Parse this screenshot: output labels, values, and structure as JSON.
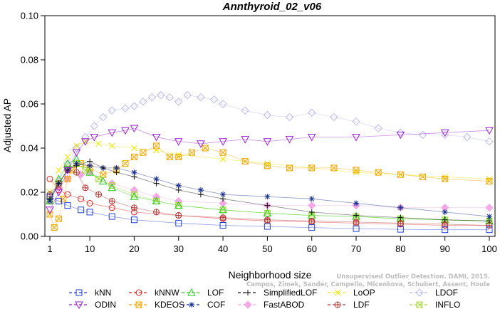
{
  "chart_data": {
    "type": "line",
    "title": "Annthyroid_02_v06",
    "xlabel": "Neighborhood size",
    "ylabel": "Adjusted AP",
    "xlim": [
      1,
      100
    ],
    "ylim": [
      0,
      0.1
    ],
    "x_ticks": [
      1,
      10,
      20,
      30,
      40,
      50,
      60,
      70,
      80,
      90,
      100
    ],
    "y_ticks": [
      "0.00",
      "0.02",
      "0.04",
      "0.06",
      "0.08",
      "0.10"
    ],
    "grid": false,
    "legend_position": "bottom",
    "watermark_lines": [
      "Unsupervised Outlier Detection. DAMI, 2015.",
      "Campos, Zimek, Sander, Campello, Micenkova, Schubert, Assent, Houle"
    ],
    "series": [
      {
        "name": "kNN",
        "color": "#1f3fd6",
        "marker": "square",
        "points": [
          [
            1,
            0.018
          ],
          [
            3,
            0.016
          ],
          [
            5,
            0.014
          ],
          [
            8,
            0.012
          ],
          [
            10,
            0.011
          ],
          [
            15,
            0.009
          ],
          [
            20,
            0.0075
          ],
          [
            30,
            0.006
          ],
          [
            40,
            0.005
          ],
          [
            50,
            0.0045
          ],
          [
            60,
            0.004
          ],
          [
            70,
            0.0035
          ],
          [
            80,
            0.0032
          ],
          [
            90,
            0.003
          ],
          [
            100,
            0.003
          ]
        ]
      },
      {
        "name": "kNNW",
        "color": "#e0201c",
        "marker": "circle",
        "points": [
          [
            1,
            0.026
          ],
          [
            3,
            0.021
          ],
          [
            5,
            0.019
          ],
          [
            8,
            0.017
          ],
          [
            10,
            0.015
          ],
          [
            15,
            0.013
          ],
          [
            20,
            0.011
          ],
          [
            30,
            0.0095
          ],
          [
            40,
            0.008
          ],
          [
            50,
            0.007
          ],
          [
            60,
            0.0065
          ],
          [
            70,
            0.006
          ],
          [
            80,
            0.0055
          ],
          [
            90,
            0.005
          ],
          [
            100,
            0.005
          ]
        ]
      },
      {
        "name": "LOF",
        "color": "#22cc1a",
        "marker": "triangle-up",
        "points": [
          [
            1,
            0.016
          ],
          [
            3,
            0.026
          ],
          [
            5,
            0.033
          ],
          [
            7,
            0.035
          ],
          [
            10,
            0.029
          ],
          [
            13,
            0.025
          ],
          [
            15,
            0.022
          ],
          [
            20,
            0.018
          ],
          [
            25,
            0.016
          ],
          [
            30,
            0.014
          ],
          [
            40,
            0.012
          ],
          [
            50,
            0.0105
          ],
          [
            60,
            0.0095
          ],
          [
            70,
            0.009
          ],
          [
            80,
            0.008
          ],
          [
            90,
            0.0075
          ],
          [
            100,
            0.007
          ]
        ]
      },
      {
        "name": "SimplifiedLOF",
        "color": "#111111",
        "marker": "plus",
        "points": [
          [
            1,
            0.017
          ],
          [
            3,
            0.024
          ],
          [
            5,
            0.03
          ],
          [
            7,
            0.032
          ],
          [
            10,
            0.034
          ],
          [
            13,
            0.031
          ],
          [
            16,
            0.029
          ],
          [
            20,
            0.027
          ],
          [
            25,
            0.024
          ],
          [
            30,
            0.021
          ],
          [
            35,
            0.019
          ],
          [
            40,
            0.017
          ],
          [
            50,
            0.014
          ],
          [
            60,
            0.011
          ],
          [
            70,
            0.0095
          ],
          [
            80,
            0.0085
          ],
          [
            90,
            0.0075
          ],
          [
            100,
            0.007
          ]
        ]
      },
      {
        "name": "LoOP",
        "color": "#f2e600",
        "marker": "x",
        "points": [
          [
            1,
            0.02
          ],
          [
            3,
            0.03
          ],
          [
            5,
            0.036
          ],
          [
            7,
            0.041
          ],
          [
            9,
            0.043
          ],
          [
            12,
            0.042
          ],
          [
            15,
            0.041
          ],
          [
            20,
            0.04
          ],
          [
            25,
            0.039
          ],
          [
            30,
            0.037
          ],
          [
            40,
            0.035
          ],
          [
            50,
            0.033
          ],
          [
            60,
            0.031
          ],
          [
            70,
            0.029
          ],
          [
            80,
            0.028
          ],
          [
            90,
            0.027
          ],
          [
            100,
            0.026
          ]
        ]
      },
      {
        "name": "LDOF",
        "color": "#b9b9ee",
        "marker": "diamond",
        "points": [
          [
            1,
            0.017
          ],
          [
            3,
            0.025
          ],
          [
            5,
            0.033
          ],
          [
            7,
            0.04
          ],
          [
            9,
            0.045
          ],
          [
            11,
            0.05
          ],
          [
            13,
            0.054
          ],
          [
            15,
            0.057
          ],
          [
            18,
            0.058
          ],
          [
            20,
            0.059
          ],
          [
            22,
            0.061
          ],
          [
            24,
            0.063
          ],
          [
            26,
            0.064
          ],
          [
            28,
            0.063
          ],
          [
            30,
            0.061
          ],
          [
            32,
            0.064
          ],
          [
            35,
            0.063
          ],
          [
            38,
            0.062
          ],
          [
            40,
            0.06
          ],
          [
            45,
            0.057
          ],
          [
            50,
            0.055
          ],
          [
            55,
            0.054
          ],
          [
            60,
            0.056
          ],
          [
            65,
            0.054
          ],
          [
            70,
            0.052
          ],
          [
            75,
            0.049
          ],
          [
            80,
            0.047
          ],
          [
            85,
            0.046
          ],
          [
            90,
            0.046
          ],
          [
            95,
            0.045
          ],
          [
            100,
            0.043
          ]
        ]
      },
      {
        "name": "ODIN",
        "color": "#9a1fd6",
        "marker": "triangle-down",
        "points": [
          [
            1,
            0.012
          ],
          [
            3,
            0.02
          ],
          [
            5,
            0.03
          ],
          [
            7,
            0.038
          ],
          [
            9,
            0.043
          ],
          [
            11,
            0.045
          ],
          [
            15,
            0.047
          ],
          [
            18,
            0.048
          ],
          [
            20,
            0.049
          ],
          [
            25,
            0.045
          ],
          [
            30,
            0.043
          ],
          [
            35,
            0.042
          ],
          [
            40,
            0.043
          ],
          [
            45,
            0.044
          ],
          [
            50,
            0.043
          ],
          [
            55,
            0.044
          ],
          [
            60,
            0.045
          ],
          [
            70,
            0.045
          ],
          [
            80,
            0.046
          ],
          [
            90,
            0.047
          ],
          [
            100,
            0.048
          ]
        ]
      },
      {
        "name": "KDEOS",
        "color": "#f2a700",
        "marker": "square-x",
        "points": [
          [
            1,
            0.01
          ],
          [
            2,
            0.004
          ],
          [
            3,
            0.008
          ],
          [
            4,
            0.017
          ],
          [
            5,
            0.026
          ],
          [
            6,
            0.03
          ],
          [
            8,
            0.033
          ],
          [
            10,
            0.031
          ],
          [
            13,
            0.028
          ],
          [
            16,
            0.03
          ],
          [
            18,
            0.033
          ],
          [
            20,
            0.036
          ],
          [
            22,
            0.038
          ],
          [
            25,
            0.041
          ],
          [
            28,
            0.036
          ],
          [
            30,
            0.036
          ],
          [
            33,
            0.038
          ],
          [
            36,
            0.04
          ],
          [
            40,
            0.038
          ],
          [
            45,
            0.034
          ],
          [
            50,
            0.032
          ],
          [
            55,
            0.031
          ],
          [
            60,
            0.031
          ],
          [
            65,
            0.031
          ],
          [
            70,
            0.03
          ],
          [
            75,
            0.029
          ],
          [
            80,
            0.028
          ],
          [
            85,
            0.027
          ],
          [
            90,
            0.026
          ],
          [
            100,
            0.025
          ]
        ]
      },
      {
        "name": "COF",
        "color": "#152e8e",
        "marker": "asterisk",
        "points": [
          [
            1,
            0.016
          ],
          [
            3,
            0.024
          ],
          [
            5,
            0.03
          ],
          [
            7,
            0.033
          ],
          [
            10,
            0.032
          ],
          [
            13,
            0.031
          ],
          [
            16,
            0.031
          ],
          [
            20,
            0.029
          ],
          [
            25,
            0.026
          ],
          [
            30,
            0.023
          ],
          [
            35,
            0.021
          ],
          [
            40,
            0.019
          ],
          [
            50,
            0.018
          ],
          [
            60,
            0.017
          ],
          [
            70,
            0.015
          ],
          [
            80,
            0.013
          ],
          [
            90,
            0.011
          ],
          [
            100,
            0.009
          ]
        ]
      },
      {
        "name": "FastABOD",
        "color": "#f2a9e6",
        "marker": "diamond-filled",
        "points": [
          [
            1,
            0.016
          ],
          [
            3,
            0.022
          ],
          [
            5,
            0.026
          ],
          [
            8,
            0.028
          ],
          [
            10,
            0.029
          ],
          [
            15,
            0.024
          ],
          [
            20,
            0.021
          ],
          [
            25,
            0.018
          ],
          [
            30,
            0.016
          ],
          [
            40,
            0.015
          ],
          [
            50,
            0.014
          ],
          [
            60,
            0.014
          ],
          [
            70,
            0.014
          ],
          [
            80,
            0.013
          ],
          [
            90,
            0.013
          ],
          [
            100,
            0.013
          ]
        ]
      },
      {
        "name": "LDF",
        "color": "#b03a3a",
        "marker": "circle-plus",
        "points": [
          [
            1,
            0.019
          ],
          [
            3,
            0.024
          ],
          [
            5,
            0.03
          ],
          [
            7,
            0.029
          ],
          [
            9,
            0.022
          ],
          [
            12,
            0.019
          ],
          [
            15,
            0.016
          ],
          [
            20,
            0.013
          ],
          [
            25,
            0.011
          ],
          [
            30,
            0.0095
          ],
          [
            40,
            0.0085
          ],
          [
            50,
            0.0075
          ],
          [
            60,
            0.007
          ],
          [
            70,
            0.0065
          ],
          [
            80,
            0.006
          ],
          [
            90,
            0.0055
          ],
          [
            100,
            0.005
          ]
        ]
      },
      {
        "name": "INFLO",
        "color": "#a8d93a",
        "marker": "square-x-light",
        "points": [
          [
            1,
            0.016
          ],
          [
            3,
            0.024
          ],
          [
            5,
            0.031
          ],
          [
            7,
            0.033
          ],
          [
            9,
            0.03
          ],
          [
            12,
            0.026
          ],
          [
            15,
            0.023
          ],
          [
            20,
            0.019
          ],
          [
            25,
            0.016
          ],
          [
            30,
            0.014
          ],
          [
            40,
            0.012
          ],
          [
            50,
            0.0105
          ],
          [
            60,
            0.0095
          ],
          [
            70,
            0.009
          ],
          [
            80,
            0.008
          ],
          [
            90,
            0.0075
          ],
          [
            100,
            0.007
          ]
        ]
      }
    ]
  }
}
